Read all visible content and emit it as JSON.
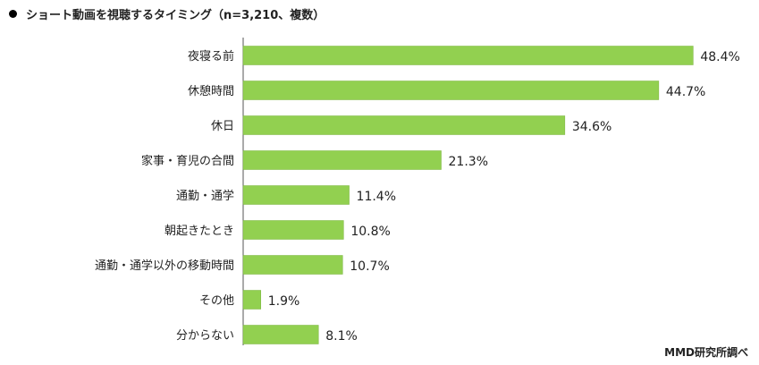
{
  "title": "ショート動画を視聴するタイミング（n=3,210、複数）",
  "source": "MMD研究所調べ",
  "bar_color": "#92d050",
  "chart_data": {
    "type": "bar",
    "orientation": "horizontal",
    "categories": [
      "夜寝る前",
      "休憩時間",
      "休日",
      "家事・育児の合間",
      "通勤・通学",
      "朝起きたとき",
      "通勤・通学以外の移動時間",
      "その他",
      "分からない"
    ],
    "values": [
      48.4,
      44.7,
      34.6,
      21.3,
      11.4,
      10.8,
      10.7,
      1.9,
      8.1
    ],
    "value_labels": [
      "48.4%",
      "44.7%",
      "34.6%",
      "21.3%",
      "11.4%",
      "10.8%",
      "10.7%",
      "1.9%",
      "8.1%"
    ],
    "xlim": [
      0,
      50
    ],
    "grid": false
  }
}
